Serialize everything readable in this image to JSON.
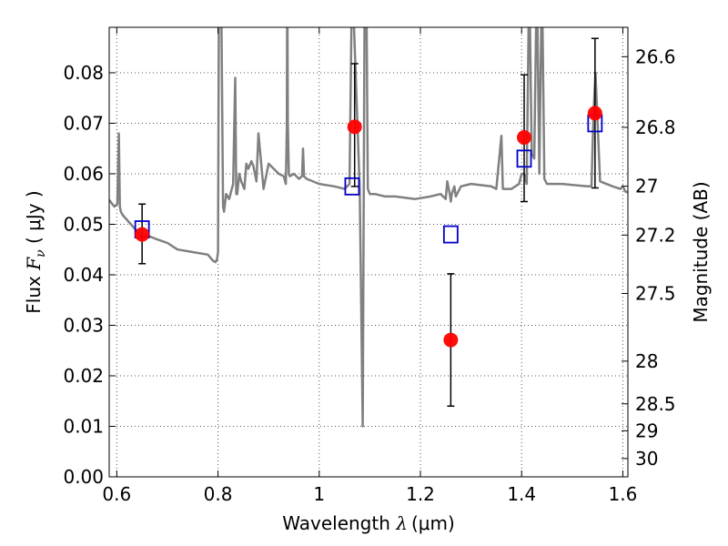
{
  "chart_data": {
    "type": "scatter",
    "xlabel": {
      "prefix": "Wavelength ",
      "symbol": "λ",
      "units": "(μm)"
    },
    "ylabel": {
      "prefix": "Flux ",
      "symbol": "F",
      "subscript": "ν",
      "units": " ( μJy )"
    },
    "y2label": "Magnitude (AB)",
    "xlim": [
      0.585,
      1.61
    ],
    "ylim": [
      0.0,
      0.089
    ],
    "x_ticks": [
      0.6,
      0.8,
      1.0,
      1.2,
      1.4,
      1.6
    ],
    "x_tick_labels": [
      "0.6",
      "0.8",
      "1",
      "1.2",
      "1.4",
      "1.6"
    ],
    "y_ticks": [
      0.0,
      0.01,
      0.02,
      0.03,
      0.04,
      0.05,
      0.06,
      0.07,
      0.08
    ],
    "y_tick_labels": [
      "0.00",
      "0.01",
      "0.02",
      "0.03",
      "0.04",
      "0.05",
      "0.06",
      "0.07",
      "0.08"
    ],
    "y2_ticks": [
      26.6,
      26.8,
      27.0,
      27.2,
      27.5,
      28.0,
      28.5,
      29.0,
      30.0
    ],
    "y2_tick_labels": [
      "26.6",
      "26.8",
      "27",
      "27.2",
      "27.5",
      "28",
      "28.5",
      "29",
      "30"
    ],
    "grid": true,
    "colors": {
      "model": "#808080",
      "observed": "#ff0000",
      "model_band": "#0000cc",
      "errorbar": "#000000"
    },
    "series": [
      {
        "kind": "line",
        "x": [
          0.585,
          0.595,
          0.601,
          0.604,
          0.606,
          0.608,
          0.612,
          0.65,
          0.66,
          0.68,
          0.7,
          0.72,
          0.75,
          0.78,
          0.79,
          0.795,
          0.798,
          0.8,
          0.802,
          0.806,
          0.81,
          0.812,
          0.816,
          0.822,
          0.83,
          0.834,
          0.836,
          0.838,
          0.842,
          0.846,
          0.852,
          0.856,
          0.86,
          0.866,
          0.87,
          0.876,
          0.88,
          0.89,
          0.9,
          0.91,
          0.92,
          0.93,
          0.934,
          0.936,
          0.937,
          0.938,
          0.94,
          0.942,
          0.95,
          0.96,
          0.966,
          0.968,
          0.97,
          0.975,
          1.0,
          1.03,
          1.05,
          1.06,
          1.065,
          1.08,
          1.086,
          1.09,
          1.093,
          1.096,
          1.1,
          1.11,
          1.13,
          1.15,
          1.19,
          1.22,
          1.24,
          1.25,
          1.253,
          1.258,
          1.26,
          1.262,
          1.267,
          1.27,
          1.28,
          1.3,
          1.34,
          1.35,
          1.36,
          1.363,
          1.366,
          1.38,
          1.395,
          1.4,
          1.405,
          1.41,
          1.415,
          1.42,
          1.425,
          1.43,
          1.435,
          1.44,
          1.445,
          1.45,
          1.48,
          1.53,
          1.538,
          1.542,
          1.546,
          1.555,
          1.58,
          1.595,
          1.6,
          1.605,
          1.61
        ],
        "y": [
          0.0548,
          0.0535,
          0.054,
          0.068,
          0.0535,
          0.0525,
          0.0518,
          0.0475,
          0.0478,
          0.047,
          0.0463,
          0.045,
          0.0445,
          0.044,
          0.0428,
          0.0425,
          0.043,
          0.0445,
          0.1,
          0.1,
          0.0535,
          0.0525,
          0.056,
          0.055,
          0.058,
          0.079,
          0.056,
          0.056,
          0.06,
          0.0585,
          0.057,
          0.062,
          0.061,
          0.0625,
          0.0615,
          0.0585,
          0.068,
          0.057,
          0.062,
          0.061,
          0.06,
          0.0595,
          0.058,
          0.069,
          0.1,
          0.07,
          0.06,
          0.0595,
          0.06,
          0.059,
          0.0595,
          0.065,
          0.0595,
          0.059,
          0.058,
          0.0575,
          0.057,
          0.058,
          0.1,
          0.057,
          0.01,
          0.1,
          0.1,
          0.057,
          0.056,
          0.056,
          0.0555,
          0.0555,
          0.055,
          0.0555,
          0.056,
          0.055,
          0.0585,
          0.056,
          0.0545,
          0.056,
          0.0575,
          0.0555,
          0.0575,
          0.058,
          0.0575,
          0.057,
          0.0675,
          0.057,
          0.057,
          0.057,
          0.058,
          0.06,
          0.06,
          0.058,
          0.1,
          0.064,
          0.063,
          0.1,
          0.06,
          0.1,
          0.059,
          0.058,
          0.058,
          0.0575,
          0.0575,
          0.072,
          0.08,
          0.0585,
          0.0575,
          0.057,
          0.0575,
          0.0565,
          0.0563
        ]
      },
      {
        "kind": "model_band",
        "x": [
          0.65,
          1.065,
          1.26,
          1.405,
          1.545
        ],
        "y": [
          0.049,
          0.0575,
          0.048,
          0.063,
          0.07
        ]
      },
      {
        "kind": "observed",
        "x": [
          0.65,
          1.07,
          1.26,
          1.405,
          1.545
        ],
        "y": [
          0.048,
          0.0693,
          0.0271,
          0.0672,
          0.072
        ],
        "y_err_low": [
          0.0058,
          0.0118,
          0.0131,
          0.0127,
          0.0148
        ],
        "y_err_high": [
          0.006,
          0.0125,
          0.0131,
          0.0124,
          0.0148
        ]
      }
    ]
  }
}
